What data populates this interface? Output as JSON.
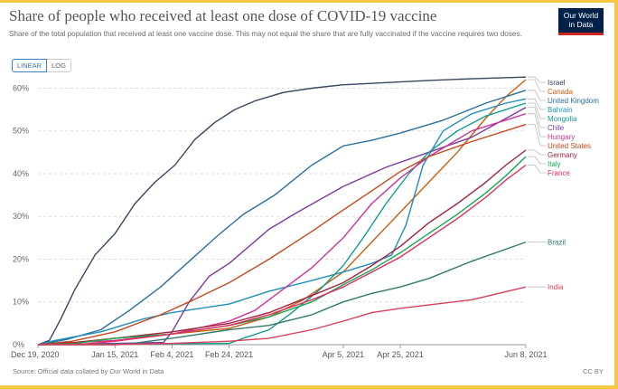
{
  "header": {
    "title": "Share of people who received at least one dose of COVID-19 vaccine",
    "subtitle": "Share of the total population that received at least one vaccine dose. This may not equal the share that are fully vaccinated if the vaccine requires two doses.",
    "logo_line1": "Our World",
    "logo_line2": "in Data"
  },
  "controls": {
    "linear_label": "LINEAR",
    "log_label": "LOG",
    "selected": "LINEAR"
  },
  "footer": {
    "source": "Source: Official data collated by Our World in Data",
    "license": "CC BY"
  },
  "chart_data": {
    "type": "line",
    "xlim": [
      "2020-12-19",
      "2021-06-08"
    ],
    "ylim": [
      0,
      62
    ],
    "ytick_values": [
      0,
      10,
      20,
      30,
      40,
      50,
      60
    ],
    "ytick_labels": [
      "0%",
      "10%",
      "20%",
      "30%",
      "40%",
      "50%",
      "60%"
    ],
    "xtick_values": [
      "2020-12-19",
      "2021-01-15",
      "2021-02-04",
      "2021-02-24",
      "2021-04-05",
      "2021-04-25",
      "2021-06-08"
    ],
    "xtick_labels": [
      "Dec 19, 2020",
      "Jan 15, 2021",
      "Feb 4, 2021",
      "Feb 24, 2021",
      "Apr 5, 2021",
      "Apr 25, 2021",
      "Jun 8, 2021"
    ],
    "grid": "horizontal dashed",
    "legend": "right",
    "series": [
      {
        "name": "Israel",
        "color": "#37465e",
        "points": [
          [
            "2020-12-19",
            0
          ],
          [
            "2020-12-23",
            1
          ],
          [
            "2020-12-27",
            6
          ],
          [
            "2021-01-01",
            13
          ],
          [
            "2021-01-08",
            21
          ],
          [
            "2021-01-15",
            26
          ],
          [
            "2021-01-22",
            33
          ],
          [
            "2021-01-29",
            38
          ],
          [
            "2021-02-05",
            42
          ],
          [
            "2021-02-12",
            48
          ],
          [
            "2021-02-19",
            52
          ],
          [
            "2021-02-26",
            55
          ],
          [
            "2021-03-05",
            57
          ],
          [
            "2021-03-15",
            59
          ],
          [
            "2021-03-25",
            60
          ],
          [
            "2021-04-05",
            60.8
          ],
          [
            "2021-04-20",
            61.3
          ],
          [
            "2021-05-05",
            61.8
          ],
          [
            "2021-05-20",
            62.2
          ],
          [
            "2021-06-08",
            62.6
          ]
        ]
      },
      {
        "name": "Canada",
        "color": "#ca5e10",
        "points": [
          [
            "2020-12-19",
            0
          ],
          [
            "2021-01-01",
            0.5
          ],
          [
            "2021-01-15",
            1.5
          ],
          [
            "2021-02-04",
            2.5
          ],
          [
            "2021-02-24",
            3.8
          ],
          [
            "2021-03-10",
            6.5
          ],
          [
            "2021-03-22",
            10.5
          ],
          [
            "2021-04-05",
            17
          ],
          [
            "2021-04-15",
            24
          ],
          [
            "2021-04-25",
            31
          ],
          [
            "2021-05-05",
            38
          ],
          [
            "2021-05-15",
            45
          ],
          [
            "2021-05-25",
            53
          ],
          [
            "2021-06-01",
            58
          ],
          [
            "2021-06-08",
            62
          ]
        ]
      },
      {
        "name": "United Kingdom",
        "color": "#2a6f9e",
        "points": [
          [
            "2020-12-19",
            0
          ],
          [
            "2020-12-29",
            1.2
          ],
          [
            "2021-01-10",
            3.5
          ],
          [
            "2021-01-20",
            8
          ],
          [
            "2021-01-31",
            13.5
          ],
          [
            "2021-02-10",
            19.5
          ],
          [
            "2021-02-20",
            25.5
          ],
          [
            "2021-03-01",
            30.5
          ],
          [
            "2021-03-12",
            35
          ],
          [
            "2021-03-25",
            42
          ],
          [
            "2021-04-05",
            46.5
          ],
          [
            "2021-04-15",
            47.8
          ],
          [
            "2021-04-25",
            49.5
          ],
          [
            "2021-05-10",
            52.5
          ],
          [
            "2021-05-25",
            56.5
          ],
          [
            "2021-06-08",
            59.5
          ]
        ]
      },
      {
        "name": "Bahrain",
        "color": "#1f8fbd",
        "points": [
          [
            "2020-12-19",
            0
          ],
          [
            "2020-12-25",
            1
          ],
          [
            "2021-01-10",
            3
          ],
          [
            "2021-01-25",
            6
          ],
          [
            "2021-02-04",
            7.5
          ],
          [
            "2021-02-24",
            9.5
          ],
          [
            "2021-03-10",
            12.5
          ],
          [
            "2021-03-25",
            15
          ],
          [
            "2021-04-05",
            17
          ],
          [
            "2021-04-15",
            19
          ],
          [
            "2021-04-22",
            21
          ],
          [
            "2021-04-27",
            28
          ],
          [
            "2021-05-03",
            42
          ],
          [
            "2021-05-10",
            50
          ],
          [
            "2021-05-20",
            54
          ],
          [
            "2021-06-01",
            56.5
          ],
          [
            "2021-06-08",
            57.5
          ]
        ]
      },
      {
        "name": "Chile",
        "color": "#7c3a9e",
        "points": [
          [
            "2020-12-19",
            0
          ],
          [
            "2021-01-15",
            0.3
          ],
          [
            "2021-02-01",
            0.5
          ],
          [
            "2021-02-04",
            3
          ],
          [
            "2021-02-10",
            10
          ],
          [
            "2021-02-17",
            16
          ],
          [
            "2021-02-24",
            19
          ],
          [
            "2021-03-03",
            23
          ],
          [
            "2021-03-10",
            27
          ],
          [
            "2021-03-20",
            31
          ],
          [
            "2021-04-05",
            37
          ],
          [
            "2021-04-20",
            41.5
          ],
          [
            "2021-05-05",
            45
          ],
          [
            "2021-05-20",
            48.5
          ],
          [
            "2021-06-08",
            55.5
          ]
        ]
      },
      {
        "name": "Mongolia",
        "color": "#0f9c8e",
        "points": [
          [
            "2020-12-19",
            0
          ],
          [
            "2021-02-24",
            0.3
          ],
          [
            "2021-03-01",
            1.5
          ],
          [
            "2021-03-10",
            3.5
          ],
          [
            "2021-03-18",
            7.5
          ],
          [
            "2021-03-28",
            13
          ],
          [
            "2021-04-05",
            18.5
          ],
          [
            "2021-04-12",
            25
          ],
          [
            "2021-04-20",
            33
          ],
          [
            "2021-04-28",
            40
          ],
          [
            "2021-05-05",
            45
          ],
          [
            "2021-05-15",
            50
          ],
          [
            "2021-05-25",
            53.5
          ],
          [
            "2021-06-08",
            56.5
          ]
        ]
      },
      {
        "name": "Hungary",
        "color": "#cc3399",
        "points": [
          [
            "2020-12-19",
            0
          ],
          [
            "2021-01-15",
            1
          ],
          [
            "2021-02-04",
            2.5
          ],
          [
            "2021-02-24",
            5.5
          ],
          [
            "2021-03-05",
            8
          ],
          [
            "2021-03-15",
            13
          ],
          [
            "2021-03-25",
            18
          ],
          [
            "2021-04-05",
            25
          ],
          [
            "2021-04-15",
            33
          ],
          [
            "2021-04-25",
            39
          ],
          [
            "2021-05-05",
            44
          ],
          [
            "2021-05-20",
            50
          ],
          [
            "2021-06-08",
            54
          ]
        ]
      },
      {
        "name": "United States",
        "color": "#c7491c",
        "points": [
          [
            "2020-12-19",
            0
          ],
          [
            "2020-12-31",
            0.8
          ],
          [
            "2021-01-15",
            3
          ],
          [
            "2021-01-31",
            7
          ],
          [
            "2021-02-10",
            10
          ],
          [
            "2021-02-24",
            14.5
          ],
          [
            "2021-03-10",
            20
          ],
          [
            "2021-03-25",
            26.5
          ],
          [
            "2021-04-05",
            31.5
          ],
          [
            "2021-04-15",
            36
          ],
          [
            "2021-04-25",
            40.5
          ],
          [
            "2021-05-05",
            44
          ],
          [
            "2021-05-20",
            47.5
          ],
          [
            "2021-06-08",
            51.5
          ]
        ]
      },
      {
        "name": "Germany",
        "color": "#a2213b",
        "points": [
          [
            "2020-12-19",
            0
          ],
          [
            "2021-01-01",
            0.5
          ],
          [
            "2021-01-15",
            1.5
          ],
          [
            "2021-02-04",
            3
          ],
          [
            "2021-02-24",
            5
          ],
          [
            "2021-03-10",
            7.5
          ],
          [
            "2021-03-25",
            11.5
          ],
          [
            "2021-04-05",
            14.5
          ],
          [
            "2021-04-15",
            18.5
          ],
          [
            "2021-04-25",
            23
          ],
          [
            "2021-05-05",
            28.5
          ],
          [
            "2021-05-15",
            33
          ],
          [
            "2021-05-25",
            38
          ],
          [
            "2021-06-01",
            42
          ],
          [
            "2021-06-08",
            45.5
          ]
        ]
      },
      {
        "name": "Italy",
        "color": "#18a84b",
        "points": [
          [
            "2020-12-19",
            0
          ],
          [
            "2021-01-01",
            0.3
          ],
          [
            "2021-01-15",
            1.5
          ],
          [
            "2021-02-04",
            2.5
          ],
          [
            "2021-02-24",
            4.5
          ],
          [
            "2021-03-10",
            6.5
          ],
          [
            "2021-03-25",
            10
          ],
          [
            "2021-04-05",
            14
          ],
          [
            "2021-04-15",
            17.5
          ],
          [
            "2021-04-25",
            21.5
          ],
          [
            "2021-05-05",
            26
          ],
          [
            "2021-05-15",
            30.5
          ],
          [
            "2021-05-25",
            35.5
          ],
          [
            "2021-06-01",
            39.5
          ],
          [
            "2021-06-08",
            44
          ]
        ]
      },
      {
        "name": "France",
        "color": "#de2c5e",
        "points": [
          [
            "2020-12-19",
            0
          ],
          [
            "2021-01-05",
            0.2
          ],
          [
            "2021-01-15",
            0.8
          ],
          [
            "2021-02-04",
            2.5
          ],
          [
            "2021-02-24",
            4.5
          ],
          [
            "2021-03-10",
            7
          ],
          [
            "2021-03-25",
            10.5
          ],
          [
            "2021-04-05",
            13.5
          ],
          [
            "2021-04-15",
            17
          ],
          [
            "2021-04-25",
            20.5
          ],
          [
            "2021-05-05",
            25
          ],
          [
            "2021-05-15",
            29.5
          ],
          [
            "2021-05-25",
            34.5
          ],
          [
            "2021-06-01",
            38.5
          ],
          [
            "2021-06-08",
            42
          ]
        ]
      },
      {
        "name": "Brazil",
        "color": "#2f7b6b",
        "points": [
          [
            "2020-12-19",
            0
          ],
          [
            "2021-01-15",
            0
          ],
          [
            "2021-01-20",
            0.2
          ],
          [
            "2021-02-04",
            1.5
          ],
          [
            "2021-02-24",
            3.5
          ],
          [
            "2021-03-10",
            4.5
          ],
          [
            "2021-03-25",
            7
          ],
          [
            "2021-04-05",
            10
          ],
          [
            "2021-04-15",
            12
          ],
          [
            "2021-04-25",
            13.5
          ],
          [
            "2021-05-05",
            15.5
          ],
          [
            "2021-05-20",
            19.5
          ],
          [
            "2021-06-08",
            24
          ]
        ]
      },
      {
        "name": "India",
        "color": "#d93f5b",
        "points": [
          [
            "2020-12-19",
            0
          ],
          [
            "2021-01-15",
            0
          ],
          [
            "2021-01-20",
            0.1
          ],
          [
            "2021-02-04",
            0.3
          ],
          [
            "2021-02-24",
            0.8
          ],
          [
            "2021-03-10",
            1.5
          ],
          [
            "2021-03-25",
            3.5
          ],
          [
            "2021-04-05",
            5.5
          ],
          [
            "2021-04-15",
            7.5
          ],
          [
            "2021-04-25",
            8.5
          ],
          [
            "2021-05-05",
            9.3
          ],
          [
            "2021-05-20",
            10.5
          ],
          [
            "2021-06-08",
            13.5
          ]
        ]
      }
    ]
  }
}
